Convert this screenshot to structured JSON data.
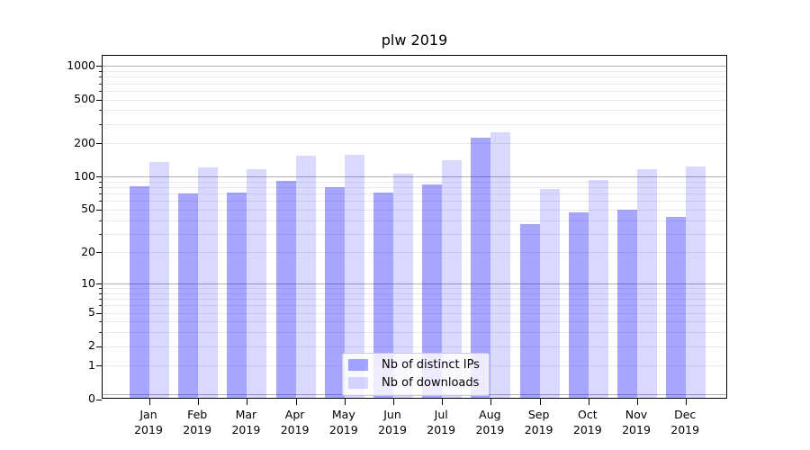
{
  "chart_data": {
    "type": "bar",
    "title": "plw 2019",
    "categories": [
      "Jan",
      "Feb",
      "Mar",
      "Apr",
      "May",
      "Jun",
      "Jul",
      "Aug",
      "Sep",
      "Oct",
      "Nov",
      "Dec"
    ],
    "year_label": "2019",
    "series": [
      {
        "name": "Nb of distinct IPs",
        "color": "rgba(0,0,255,0.35)",
        "values": [
          79,
          68,
          70,
          89,
          78,
          70,
          83,
          218,
          36,
          46,
          49,
          42
        ]
      },
      {
        "name": "Nb of downloads",
        "color": "rgba(0,0,255,0.15)",
        "values": [
          132,
          118,
          114,
          151,
          153,
          103,
          137,
          246,
          75,
          90,
          114,
          120
        ]
      }
    ],
    "yticks": [
      0,
      1,
      2,
      5,
      10,
      20,
      50,
      100,
      200,
      500,
      1000
    ],
    "yscale": "log10(1+x)",
    "ylim": [
      0,
      1250
    ],
    "grid": true,
    "legend_position": "lower-center"
  }
}
